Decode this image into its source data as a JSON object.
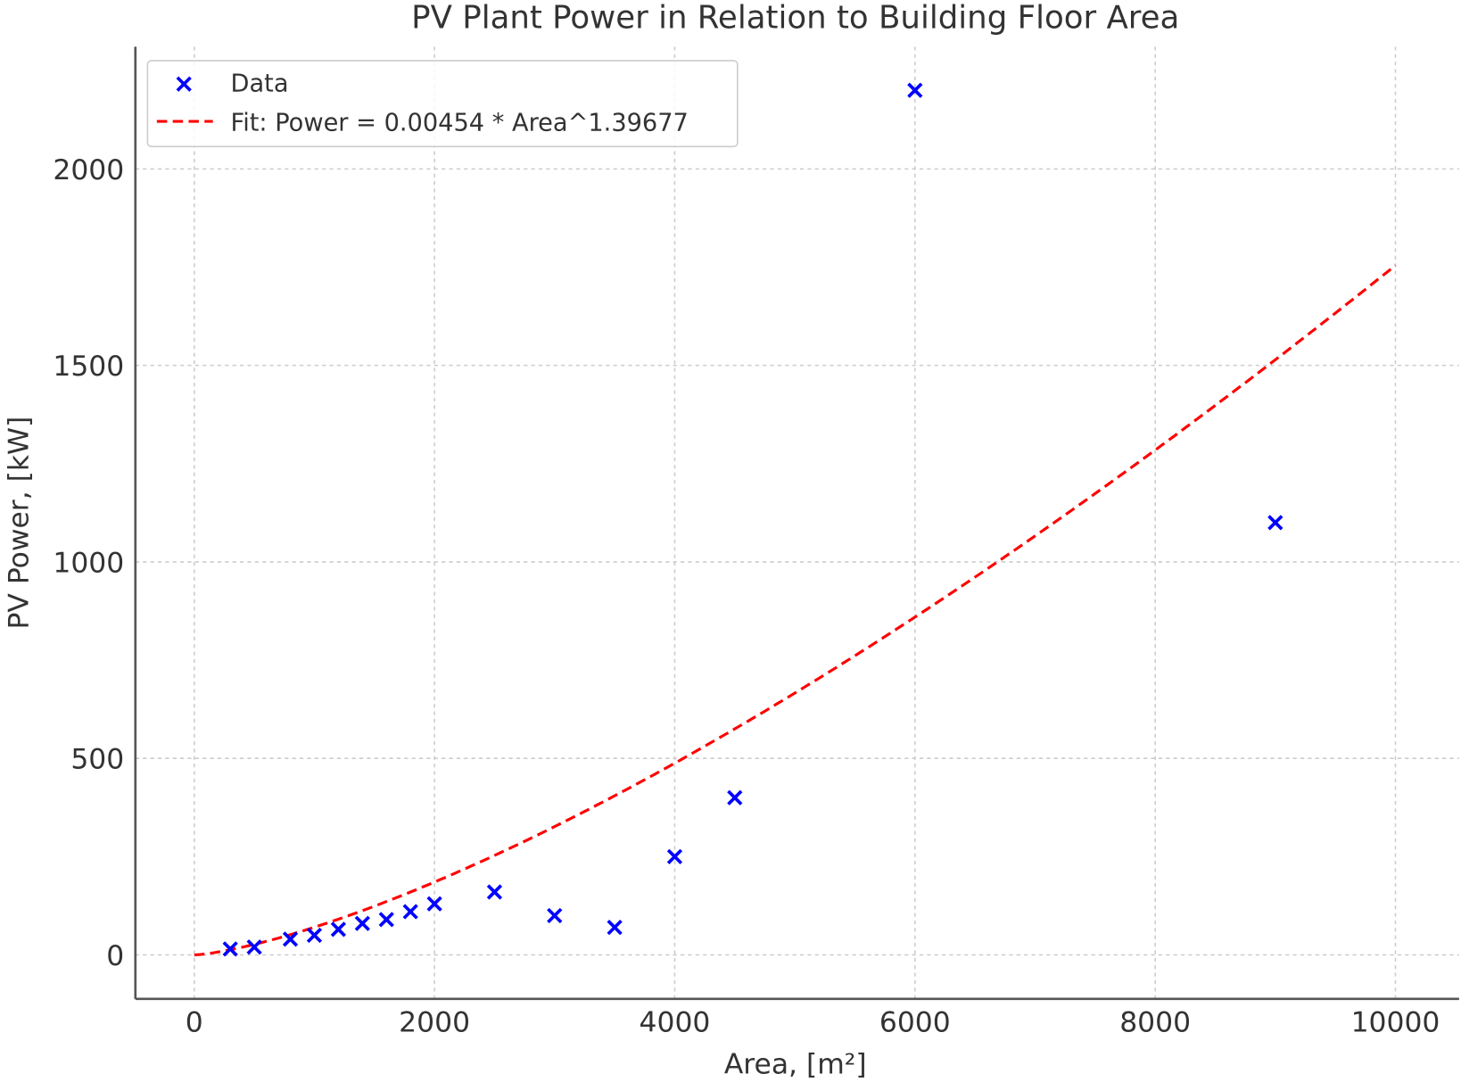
{
  "chart_data": {
    "type": "scatter",
    "title": "PV Plant Power in Relation to Building Floor Area",
    "xlabel": "Area, [m²]",
    "ylabel": "PV Power, [kW]",
    "xlim": [
      -490,
      10530
    ],
    "ylim": [
      -112,
      2311
    ],
    "xticks": [
      0,
      2000,
      4000,
      6000,
      8000,
      10000
    ],
    "yticks": [
      0,
      500,
      1000,
      1500,
      2000
    ],
    "grid": true,
    "legend_position": "top-left",
    "series": [
      {
        "name": "Data",
        "kind": "scatter",
        "marker": "x",
        "color": "#0000ff",
        "x": [
          300,
          500,
          800,
          1000,
          1200,
          1400,
          1600,
          1800,
          2000,
          2500,
          3000,
          3500,
          4000,
          4500,
          6000,
          9000
        ],
        "y": [
          15,
          20,
          40,
          50,
          65,
          80,
          90,
          110,
          130,
          160,
          100,
          70,
          250,
          400,
          2200,
          1100
        ]
      },
      {
        "name": "Fit: Power = 0.00454 * Area^1.39677",
        "kind": "line",
        "style": "dashed",
        "color": "#ff0000",
        "coefficient": 0.00454,
        "exponent": 1.39677,
        "x_range": [
          0,
          10000
        ]
      }
    ]
  }
}
